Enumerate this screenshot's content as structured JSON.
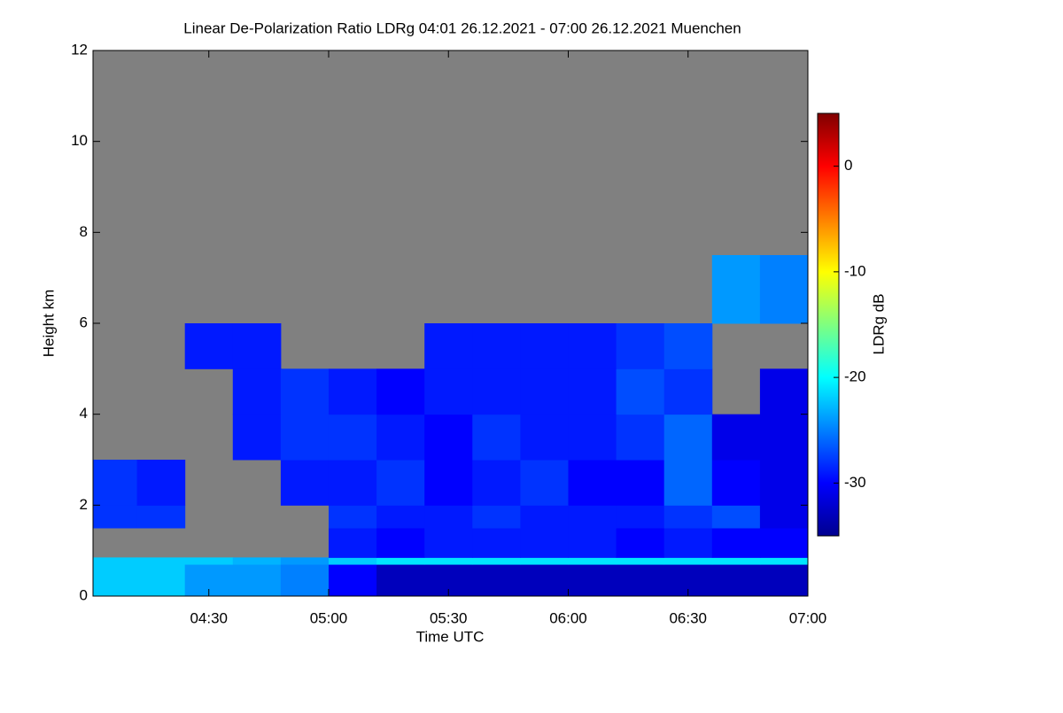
{
  "chart_data": {
    "type": "heatmap",
    "title": "Linear De-Polarization Ratio LDRg   04:01 26.12.2021 - 07:00 26.12.2021 Muenchen",
    "x_label": "Time UTC",
    "y_label": "Height km",
    "colorbar_label": "LDRg dB",
    "xlim": [
      4.0167,
      7.0
    ],
    "xticks": [
      {
        "value": 4.5,
        "label": "04:30"
      },
      {
        "value": 5.0,
        "label": "05:00"
      },
      {
        "value": 5.5,
        "label": "05:30"
      },
      {
        "value": 6.0,
        "label": "06:00"
      },
      {
        "value": 6.5,
        "label": "06:30"
      },
      {
        "value": 7.0,
        "label": "07:00"
      }
    ],
    "ylim": [
      0,
      12
    ],
    "yticks": [
      0,
      2,
      4,
      6,
      8,
      10,
      12
    ],
    "clim": [
      -35,
      5
    ],
    "cticks": [
      -30,
      -20,
      -10,
      0
    ],
    "x_edges": [
      4.0167,
      4.2,
      4.4,
      4.6,
      4.8,
      5.0,
      5.2,
      5.4,
      5.6,
      5.8,
      6.0,
      6.2,
      6.4,
      6.6,
      6.8,
      7.0
    ],
    "y_edges": [
      0,
      0.7,
      0.85,
      1.5,
      2,
      3,
      4,
      5,
      6,
      7.5
    ],
    "values": [
      [
        -22,
        -22,
        -24,
        -24,
        -25,
        -30,
        -33,
        -33,
        -33,
        -33,
        -33,
        -33,
        -33,
        -33,
        -33
      ],
      [
        -22,
        -22,
        -22,
        -23,
        -24,
        -22,
        -21,
        -21,
        -21,
        -21,
        -21,
        -21,
        -21,
        -21,
        -21
      ],
      [
        null,
        null,
        null,
        null,
        null,
        -29,
        -30,
        -29,
        -29,
        -29,
        -29,
        -30,
        -29,
        -30,
        -30
      ],
      [
        -28,
        -28,
        null,
        null,
        null,
        -28,
        -29,
        -29,
        -28,
        -29,
        -29,
        -29,
        -28,
        -27,
        -31
      ],
      [
        -28,
        -29,
        null,
        null,
        -29,
        -29,
        -28,
        -30,
        -29,
        -28,
        -30,
        -30,
        -26,
        -30,
        -31
      ],
      [
        null,
        null,
        null,
        -29,
        -28,
        -28,
        -29,
        -30,
        -28,
        -29,
        -29,
        -28,
        -26,
        -31,
        -31
      ],
      [
        null,
        null,
        null,
        -29,
        -28,
        -29,
        -30,
        -29,
        -29,
        -29,
        -29,
        -27,
        -28,
        null,
        -31
      ],
      [
        null,
        null,
        -29,
        -29,
        null,
        null,
        null,
        -29,
        -29,
        -29,
        -29,
        -28,
        -27,
        null,
        null
      ],
      [
        null,
        null,
        null,
        null,
        null,
        null,
        null,
        null,
        null,
        null,
        null,
        null,
        null,
        -24,
        -25
      ]
    ]
  }
}
